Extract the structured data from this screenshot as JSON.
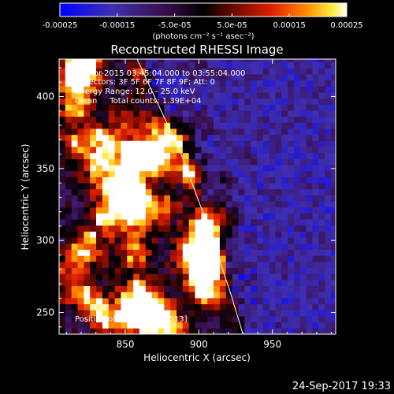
{
  "colorbar": {
    "tick_labels": [
      "-0.00025",
      "-0.00015",
      "-5.0e-05",
      "5.0e-05",
      "0.00015",
      "0.00025"
    ],
    "tick_values": [
      -0.00025,
      -0.00015,
      -5e-05,
      5e-05,
      0.00015,
      0.00025
    ],
    "range": [
      -0.00025,
      0.00025
    ],
    "unit_label": "(photons cm⁻² s⁻¹ asec⁻²)"
  },
  "chart_data": {
    "type": "heatmap",
    "title": "Reconstructed RHESSI Image",
    "xlabel": "Heliocentric X (arcsec)",
    "ylabel": "Heliocentric Y (arcsec)",
    "xlim": [
      805,
      993
    ],
    "ylim": [
      235,
      426
    ],
    "x_ticks": [
      850,
      900,
      950
    ],
    "y_ticks": [
      250,
      300,
      350,
      400
    ],
    "limb_line": [
      [
        858,
        426
      ],
      [
        888,
        360
      ],
      [
        908,
        305
      ],
      [
        922,
        262
      ],
      [
        930,
        235
      ]
    ],
    "annotations": [
      "8-Apr-2015 03:45:04.000 to 03:55:04.000",
      "Detectors: 3F 5F 6F 7F 8F 9F; Att: 0",
      "Energy Range: 12.0 - 25.0 keV",
      "Clean     Total counts: 1.39E+04"
    ],
    "peak_label": "Position of Peak = [918,313]",
    "peak_position": [
      918,
      313
    ]
  },
  "footer": {
    "timestamp": "24-Sep-2017 19:33"
  }
}
